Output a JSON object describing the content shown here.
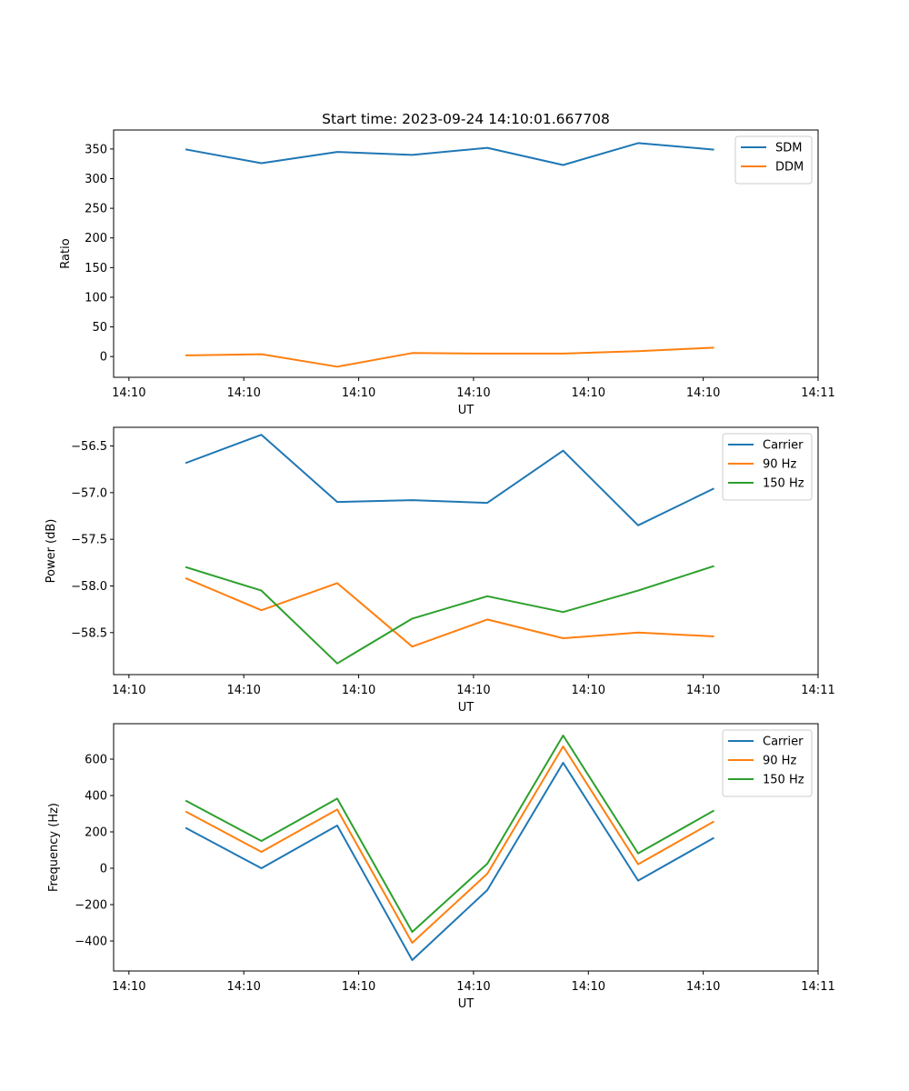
{
  "chart_data": [
    {
      "type": "line",
      "title": "Start time: 2023-09-24 14:10:01.667708",
      "xlabel": "UT",
      "ylabel": "Ratio",
      "xlim": [
        -0.2,
        9.0
      ],
      "x_ticks": [
        0,
        1.5,
        3,
        4.5,
        6,
        7.5,
        9
      ],
      "x_tick_labels": [
        "14:10",
        "14:10",
        "14:10",
        "14:10",
        "14:10",
        "14:10",
        "14:11"
      ],
      "ylim": [
        -35,
        382
      ],
      "y_ticks": [
        0,
        50,
        100,
        150,
        200,
        250,
        300,
        350
      ],
      "y_tick_labels": [
        "0",
        "50",
        "100",
        "150",
        "200",
        "250",
        "300",
        "350"
      ],
      "x": [
        0.75,
        1.73,
        2.72,
        3.7,
        4.68,
        5.67,
        6.65,
        7.63
      ],
      "series": [
        {
          "name": "SDM",
          "color": "#1f77b4",
          "values": [
            349,
            326,
            345,
            340,
            352,
            323,
            360,
            349
          ]
        },
        {
          "name": "DDM",
          "color": "#ff7f0e",
          "values": [
            2,
            4,
            -17,
            6,
            5,
            5,
            9,
            15
          ]
        }
      ],
      "legend": "top-right"
    },
    {
      "type": "line",
      "title": "",
      "xlabel": "UT",
      "ylabel": "Power (dB)",
      "xlim": [
        -0.2,
        9.0
      ],
      "x_ticks": [
        0,
        1.5,
        3,
        4.5,
        6,
        7.5,
        9
      ],
      "x_tick_labels": [
        "14:10",
        "14:10",
        "14:10",
        "14:10",
        "14:10",
        "14:10",
        "14:11"
      ],
      "ylim": [
        -58.95,
        -56.3
      ],
      "y_ticks": [
        -58.5,
        -58.0,
        -57.5,
        -57.0,
        -56.5
      ],
      "y_tick_labels": [
        "−58.5",
        "−58.0",
        "−57.5",
        "−57.0",
        "−56.5"
      ],
      "x": [
        0.75,
        1.73,
        2.72,
        3.7,
        4.68,
        5.67,
        6.65,
        7.63
      ],
      "series": [
        {
          "name": "Carrier",
          "color": "#1f77b4",
          "values": [
            -56.68,
            -56.38,
            -57.1,
            -57.08,
            -57.11,
            -56.55,
            -57.35,
            -56.96
          ]
        },
        {
          "name": "90 Hz",
          "color": "#ff7f0e",
          "values": [
            -57.92,
            -58.26,
            -57.97,
            -58.65,
            -58.36,
            -58.56,
            -58.5,
            -58.54
          ]
        },
        {
          "name": "150 Hz",
          "color": "#2ca02c",
          "values": [
            -57.8,
            -58.05,
            -58.83,
            -58.35,
            -58.11,
            -58.28,
            -58.05,
            -57.79
          ]
        }
      ],
      "legend": "top-right"
    },
    {
      "type": "line",
      "title": "",
      "xlabel": "UT",
      "ylabel": "Frequency (Hz)",
      "xlim": [
        -0.2,
        9.0
      ],
      "x_ticks": [
        0,
        1.5,
        3,
        4.5,
        6,
        7.5,
        9
      ],
      "x_tick_labels": [
        "14:10",
        "14:10",
        "14:10",
        "14:10",
        "14:10",
        "14:10",
        "14:11"
      ],
      "ylim": [
        -565,
        795
      ],
      "y_ticks": [
        -400,
        -200,
        0,
        200,
        400,
        600
      ],
      "y_tick_labels": [
        "−400",
        "−200",
        "0",
        "200",
        "400",
        "600"
      ],
      "x": [
        0.75,
        1.73,
        2.72,
        3.7,
        4.68,
        5.67,
        6.65,
        7.63
      ],
      "series": [
        {
          "name": "Carrier",
          "color": "#1f77b4",
          "values": [
            220,
            0,
            235,
            -505,
            -120,
            580,
            -68,
            165
          ]
        },
        {
          "name": "90 Hz",
          "color": "#ff7f0e",
          "values": [
            310,
            90,
            323,
            -410,
            -30,
            670,
            22,
            255
          ]
        },
        {
          "name": "150 Hz",
          "color": "#2ca02c",
          "values": [
            370,
            150,
            383,
            -350,
            25,
            730,
            82,
            315
          ]
        }
      ],
      "legend": "top-right"
    }
  ]
}
